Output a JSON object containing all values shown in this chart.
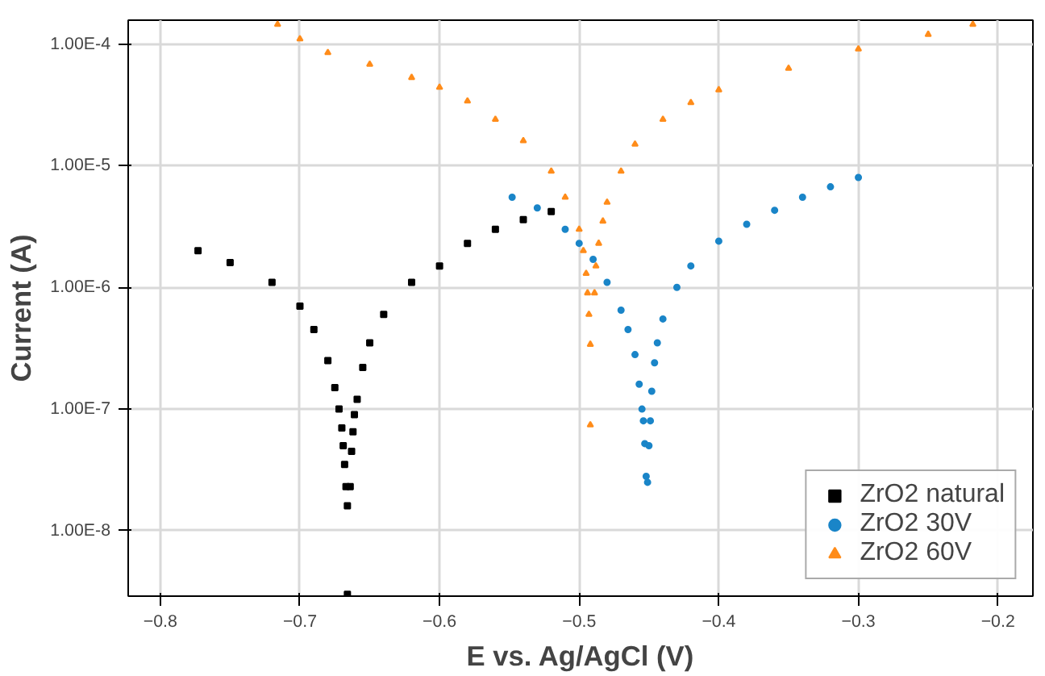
{
  "chart_data": {
    "type": "scatter",
    "xlabel": "E vs. Ag/AgCl (V)",
    "ylabel": "Current (A)",
    "log": "y",
    "grid": true,
    "legend": "bottom right",
    "xlim": [
      -0.823,
      -0.175
    ],
    "ylim": [
      2.9e-09,
      0.000157
    ],
    "xticks": [
      -0.8,
      -0.7,
      -0.6,
      -0.5,
      -0.4,
      -0.3,
      -0.2
    ],
    "yticks": [
      {
        "value": 1e-08,
        "label": "1.00E-8"
      },
      {
        "value": 1e-07,
        "label": "1.00E-7"
      },
      {
        "value": 1e-06,
        "label": "1.00E-6"
      },
      {
        "value": 1e-05,
        "label": "1.00E-5"
      },
      {
        "value": 0.0001,
        "label": "1.00E-4"
      }
    ],
    "series": [
      {
        "name": "ZrO2 natural",
        "color": "#000000",
        "marker": "square",
        "x": [
          -0.773,
          -0.75,
          -0.72,
          -0.7,
          -0.69,
          -0.68,
          -0.675,
          -0.672,
          -0.67,
          -0.669,
          -0.668,
          -0.667,
          -0.666,
          -0.666,
          -0.664,
          -0.663,
          -0.662,
          -0.661,
          -0.659,
          -0.655,
          -0.65,
          -0.64,
          -0.62,
          -0.6,
          -0.58,
          -0.56,
          -0.54,
          -0.52
        ],
        "values": [
          2e-06,
          1.6e-06,
          1.1e-06,
          7e-07,
          4.5e-07,
          2.5e-07,
          1.5e-07,
          1e-07,
          7e-08,
          5e-08,
          3.5e-08,
          2.3e-08,
          1.6e-08,
          3e-09,
          2.3e-08,
          4.5e-08,
          6.5e-08,
          9e-08,
          1.2e-07,
          2.2e-07,
          3.5e-07,
          6e-07,
          1.1e-06,
          1.5e-06,
          2.3e-06,
          3e-06,
          3.6e-06,
          4.2e-06
        ]
      },
      {
        "name": "ZrO2 30V",
        "color": "#1a85c8",
        "marker": "circle",
        "x": [
          -0.548,
          -0.53,
          -0.51,
          -0.5,
          -0.49,
          -0.48,
          -0.47,
          -0.465,
          -0.46,
          -0.457,
          -0.455,
          -0.454,
          -0.453,
          -0.452,
          -0.451,
          -0.45,
          -0.449,
          -0.448,
          -0.446,
          -0.444,
          -0.44,
          -0.43,
          -0.42,
          -0.4,
          -0.38,
          -0.36,
          -0.34,
          -0.32,
          -0.3
        ],
        "values": [
          5.5e-06,
          4.5e-06,
          3e-06,
          2.3e-06,
          1.7e-06,
          1.1e-06,
          6.5e-07,
          4.5e-07,
          2.8e-07,
          1.6e-07,
          1e-07,
          8e-08,
          5.2e-08,
          2.8e-08,
          2.5e-08,
          5e-08,
          8e-08,
          1.4e-07,
          2.4e-07,
          3.5e-07,
          5.5e-07,
          1e-06,
          1.5e-06,
          2.4e-06,
          3.3e-06,
          4.3e-06,
          5.5e-06,
          6.7e-06,
          8e-06
        ]
      },
      {
        "name": "ZrO2 60V",
        "color": "#ff8c1a",
        "marker": "triangle",
        "x": [
          -0.716,
          -0.7,
          -0.68,
          -0.65,
          -0.62,
          -0.6,
          -0.58,
          -0.56,
          -0.54,
          -0.52,
          -0.51,
          -0.5,
          -0.497,
          -0.495,
          -0.494,
          -0.493,
          -0.492,
          -0.492,
          -0.489,
          -0.488,
          -0.486,
          -0.483,
          -0.48,
          -0.47,
          -0.46,
          -0.44,
          -0.42,
          -0.4,
          -0.35,
          -0.3,
          -0.25,
          -0.218
        ],
        "values": [
          0.000145,
          0.00011,
          8.5e-05,
          6.8e-05,
          5.3e-05,
          4.4e-05,
          3.4e-05,
          2.4e-05,
          1.6e-05,
          9e-06,
          5.5e-06,
          3e-06,
          2e-06,
          1.3e-06,
          9e-07,
          6e-07,
          3.4e-07,
          7.4e-08,
          9e-07,
          1.5e-06,
          2.3e-06,
          3.5e-06,
          5e-06,
          9e-06,
          1.5e-05,
          2.4e-05,
          3.3e-05,
          4.2e-05,
          6.3e-05,
          9.1e-05,
          0.00012,
          0.000145
        ]
      }
    ]
  }
}
